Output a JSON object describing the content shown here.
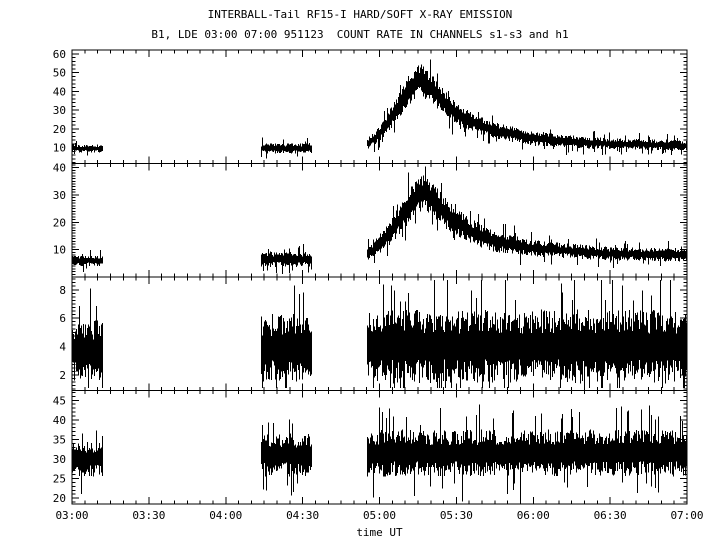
{
  "header": {
    "title": "INTERBALL-Tail RF15-I HARD/SOFT X-RAY EMISSION",
    "subtitle": "B1, LDE 03:00 07:00 951123  COUNT RATE IN CHANNELS s1-s3 and h1"
  },
  "chart_data": {
    "type": "line",
    "title": "INTERBALL-Tail RF15-I HARD/SOFT X-RAY EMISSION",
    "subtitle": "B1, LDE 03:00 07:00 951123  COUNT RATE IN CHANNELS s1-s3 and h1",
    "xlabel": "time UT",
    "background": "#ffffff",
    "series_color": "#000000",
    "grid": false,
    "legend": false,
    "xlim_hours": [
      3,
      7
    ],
    "xticks_hours": [
      3,
      3.5,
      4,
      4.5,
      5,
      5.5,
      6,
      6.5,
      7
    ],
    "xtick_labels": [
      "03:00",
      "03:30",
      "04:00",
      "04:30",
      "05:00",
      "05:30",
      "06:00",
      "06:30",
      "07:00"
    ],
    "x_minor_tick_minutes": 5,
    "data_gaps_hours": [
      [
        3.2,
        4.23
      ],
      [
        4.56,
        4.92
      ]
    ],
    "panels": [
      {
        "channel": "s1",
        "ylim": [
          1.5,
          62
        ],
        "yticks": [
          10,
          20,
          30,
          40,
          50,
          60
        ],
        "y_minor_step": 2,
        "segments": [
          {
            "envelope": [
              [
                3.0,
                9.5,
                2.2
              ],
              [
                3.2,
                9.5,
                2.2
              ]
            ]
          },
          {
            "envelope": [
              [
                4.23,
                9.5,
                2.8
              ],
              [
                4.56,
                9.5,
                2.8
              ]
            ]
          },
          {
            "envelope": [
              [
                4.92,
                12,
                3
              ],
              [
                5.0,
                17,
                4
              ],
              [
                5.08,
                26,
                6
              ],
              [
                5.17,
                38,
                8
              ],
              [
                5.25,
                47,
                9
              ],
              [
                5.33,
                42,
                8
              ],
              [
                5.42,
                34,
                7
              ],
              [
                5.5,
                28,
                6
              ],
              [
                5.62,
                23,
                5
              ],
              [
                5.75,
                19,
                4.5
              ],
              [
                6.0,
                15,
                4
              ],
              [
                6.25,
                13,
                3.5
              ],
              [
                6.5,
                12,
                3
              ],
              [
                7.0,
                11,
                3
              ]
            ]
          }
        ]
      },
      {
        "channel": "s2",
        "ylim": [
          0,
          41.5
        ],
        "yticks": [
          10,
          20,
          30,
          40
        ],
        "y_minor_step": 1,
        "segments": [
          {
            "envelope": [
              [
                3.0,
                6,
                2
              ],
              [
                3.2,
                6,
                2
              ]
            ]
          },
          {
            "envelope": [
              [
                4.23,
                6.5,
                2.8
              ],
              [
                4.56,
                6.5,
                2.8
              ]
            ]
          },
          {
            "envelope": [
              [
                4.92,
                8,
                2.5
              ],
              [
                5.0,
                12,
                3.5
              ],
              [
                5.08,
                17,
                5
              ],
              [
                5.17,
                24,
                6
              ],
              [
                5.25,
                30,
                6.5
              ],
              [
                5.3,
                31,
                6.5
              ],
              [
                5.4,
                25,
                6
              ],
              [
                5.5,
                20,
                5
              ],
              [
                5.62,
                16,
                4.5
              ],
              [
                5.75,
                13,
                4
              ],
              [
                6.0,
                10.5,
                3
              ],
              [
                6.5,
                8.5,
                2.5
              ],
              [
                7.0,
                8,
                2.5
              ]
            ]
          }
        ]
      },
      {
        "channel": "s3",
        "ylim": [
          0.9,
          8.9
        ],
        "yticks": [
          2,
          4,
          6,
          8
        ],
        "y_minor_step": 0.25,
        "segments": [
          {
            "envelope": [
              [
                3.0,
                3.7,
                2.2
              ],
              [
                3.2,
                3.7,
                2.2
              ]
            ]
          },
          {
            "envelope": [
              [
                4.23,
                3.9,
                2.4
              ],
              [
                4.56,
                3.9,
                2.4
              ]
            ]
          },
          {
            "envelope": [
              [
                4.92,
                4.0,
                2.6
              ],
              [
                7.0,
                4.0,
                2.6
              ]
            ]
          }
        ]
      },
      {
        "channel": "h1",
        "ylim": [
          18.5,
          47.5
        ],
        "yticks": [
          20,
          25,
          30,
          35,
          40,
          45
        ],
        "y_minor_step": 1,
        "segments": [
          {
            "envelope": [
              [
                3.0,
                30,
                4.5
              ],
              [
                3.2,
                30,
                4.5
              ]
            ]
          },
          {
            "envelope": [
              [
                4.23,
                31,
                5.5
              ],
              [
                4.56,
                31,
                5.5
              ]
            ]
          },
          {
            "envelope": [
              [
                4.92,
                31.5,
                6
              ],
              [
                7.0,
                31.5,
                6
              ]
            ]
          }
        ]
      }
    ]
  }
}
